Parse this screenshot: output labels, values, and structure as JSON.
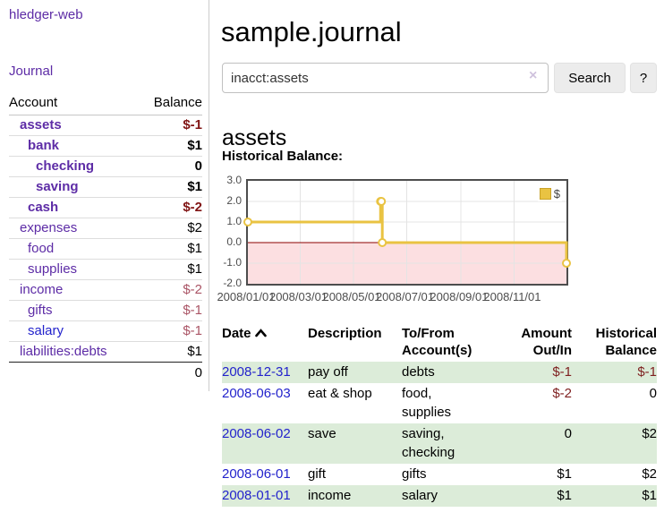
{
  "sidebar": {
    "brand": "hledger-web",
    "nav": {
      "journal": "Journal"
    },
    "accounts_table": {
      "headers": {
        "account": "Account",
        "balance": "Balance"
      },
      "rows": [
        {
          "name": "assets",
          "balance": "$-1"
        },
        {
          "name": "bank",
          "balance": "$1"
        },
        {
          "name": "checking",
          "balance": "0"
        },
        {
          "name": "saving",
          "balance": "$1"
        },
        {
          "name": "cash",
          "balance": "$-2"
        },
        {
          "name": "expenses",
          "balance": "$2"
        },
        {
          "name": "food",
          "balance": "$1"
        },
        {
          "name": "supplies",
          "balance": "$1"
        },
        {
          "name": "income",
          "balance": "$-2"
        },
        {
          "name": "gifts",
          "balance": "$-1"
        },
        {
          "name": "salary",
          "balance": "$-1"
        },
        {
          "name": "liabilities:debts",
          "balance": "$1"
        }
      ],
      "total": "0"
    }
  },
  "main": {
    "title": "sample.journal",
    "search": {
      "value": "inacct:assets",
      "clear_icon": "×",
      "search_button": "Search",
      "help_button": "?"
    },
    "account_heading": "assets",
    "register": {
      "headers": {
        "date": "Date",
        "description": "Description",
        "accounts": "To/From Account(s)",
        "amount": "Amount Out/In",
        "balance": "Historical Balance"
      },
      "rows": [
        {
          "date": "2008-12-31",
          "description": "pay off",
          "accounts": "debts",
          "amount": "$-1",
          "balance": "$-1"
        },
        {
          "date": "2008-06-03",
          "description": "eat & shop",
          "accounts": "food, supplies",
          "amount": "$-2",
          "balance": "0"
        },
        {
          "date": "2008-06-02",
          "description": "save",
          "accounts": "saving, checking",
          "amount": "0",
          "balance": "$2"
        },
        {
          "date": "2008-06-01",
          "description": "gift",
          "accounts": "gifts",
          "amount": "$1",
          "balance": "$2"
        },
        {
          "date": "2008-01-01",
          "description": "income",
          "accounts": "salary",
          "amount": "$1",
          "balance": "$1"
        }
      ]
    }
  },
  "chart_data": {
    "type": "line",
    "title": "Historical Balance:",
    "style": "steps",
    "series": [
      {
        "name": "$",
        "color": "#e9c342",
        "marker": "open-circle",
        "x": [
          "2008-01-01",
          "2008-06-01",
          "2008-06-02",
          "2008-06-03",
          "2008-12-31"
        ],
        "y": [
          1,
          2,
          2,
          0,
          -1
        ]
      }
    ],
    "xlim": [
      "2008-01-01",
      "2008-12-31"
    ],
    "ylim": [
      -2,
      3
    ],
    "yticks": [
      {
        "v": 3,
        "label": "3.0"
      },
      {
        "v": 2,
        "label": "2.0"
      },
      {
        "v": 1,
        "label": "1.0"
      },
      {
        "v": 0,
        "label": "0.0"
      },
      {
        "v": -1,
        "label": "-1.0"
      },
      {
        "v": -2,
        "label": "-2.0"
      }
    ],
    "xticks": [
      {
        "date": "2008-01-01",
        "label": "2008/01/01"
      },
      {
        "date": "2008-03-01",
        "label": "2008/03/01"
      },
      {
        "date": "2008-05-01",
        "label": "2008/05/01"
      },
      {
        "date": "2008-07-01",
        "label": "2008/07/01"
      },
      {
        "date": "2008-09-01",
        "label": "2008/09/01"
      },
      {
        "date": "2008-11-01",
        "label": "2008/11/01"
      }
    ],
    "grid": true,
    "grid_color": "#e4e4e4",
    "negative_region_color": "#fcdfe1",
    "zero_line_color": "#8b0000",
    "legend_position": "top-right"
  }
}
